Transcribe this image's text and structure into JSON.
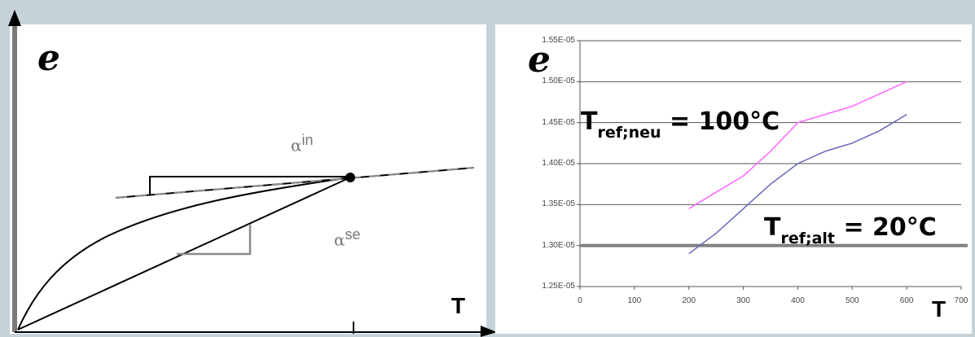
{
  "left_diagram": {
    "y_axis_label": "e",
    "x_axis_label": "T",
    "alpha_in": {
      "symbol": "α",
      "superscript": "in"
    },
    "alpha_se": {
      "symbol": "α",
      "superscript": "se"
    }
  },
  "chart_data": {
    "type": "line",
    "y_axis_label": "e",
    "x_axis_label": "T",
    "x_ticks": [
      "0",
      "100",
      "200",
      "300",
      "400",
      "500",
      "600",
      "700"
    ],
    "y_ticks": [
      "1.55E-05",
      "1.50E-05",
      "1.45E-05",
      "1.40E-05",
      "1.35E-05",
      "1.30E-05",
      "1.25E-05"
    ],
    "xlim": [
      0,
      700
    ],
    "ylim": [
      1.25e-05,
      1.55e-05
    ],
    "grid": "horizontal",
    "series": [
      {
        "color": "#ff66ff",
        "x": [
          200,
          250,
          300,
          350,
          400,
          450,
          500,
          550,
          600
        ],
        "y": [
          1.345e-05,
          1.365e-05,
          1.385e-05,
          1.415e-05,
          1.45e-05,
          1.46e-05,
          1.47e-05,
          1.485e-05,
          1.5e-05
        ]
      },
      {
        "color": "#6666bb",
        "x": [
          200,
          250,
          300,
          350,
          400,
          450,
          500,
          550,
          600
        ],
        "y": [
          1.29e-05,
          1.315e-05,
          1.345e-05,
          1.375e-05,
          1.4e-05,
          1.415e-05,
          1.425e-05,
          1.44e-05,
          1.46e-05
        ]
      }
    ],
    "reference_line": {
      "y": 1.3e-05,
      "color": "#808080"
    },
    "annotations": {
      "tref_neu": {
        "main": "T",
        "sub": "ref;neu",
        "rest": " = 100°C"
      },
      "tref_alt": {
        "main": "T",
        "sub": "ref;alt",
        "rest": " = 20°C"
      }
    }
  }
}
